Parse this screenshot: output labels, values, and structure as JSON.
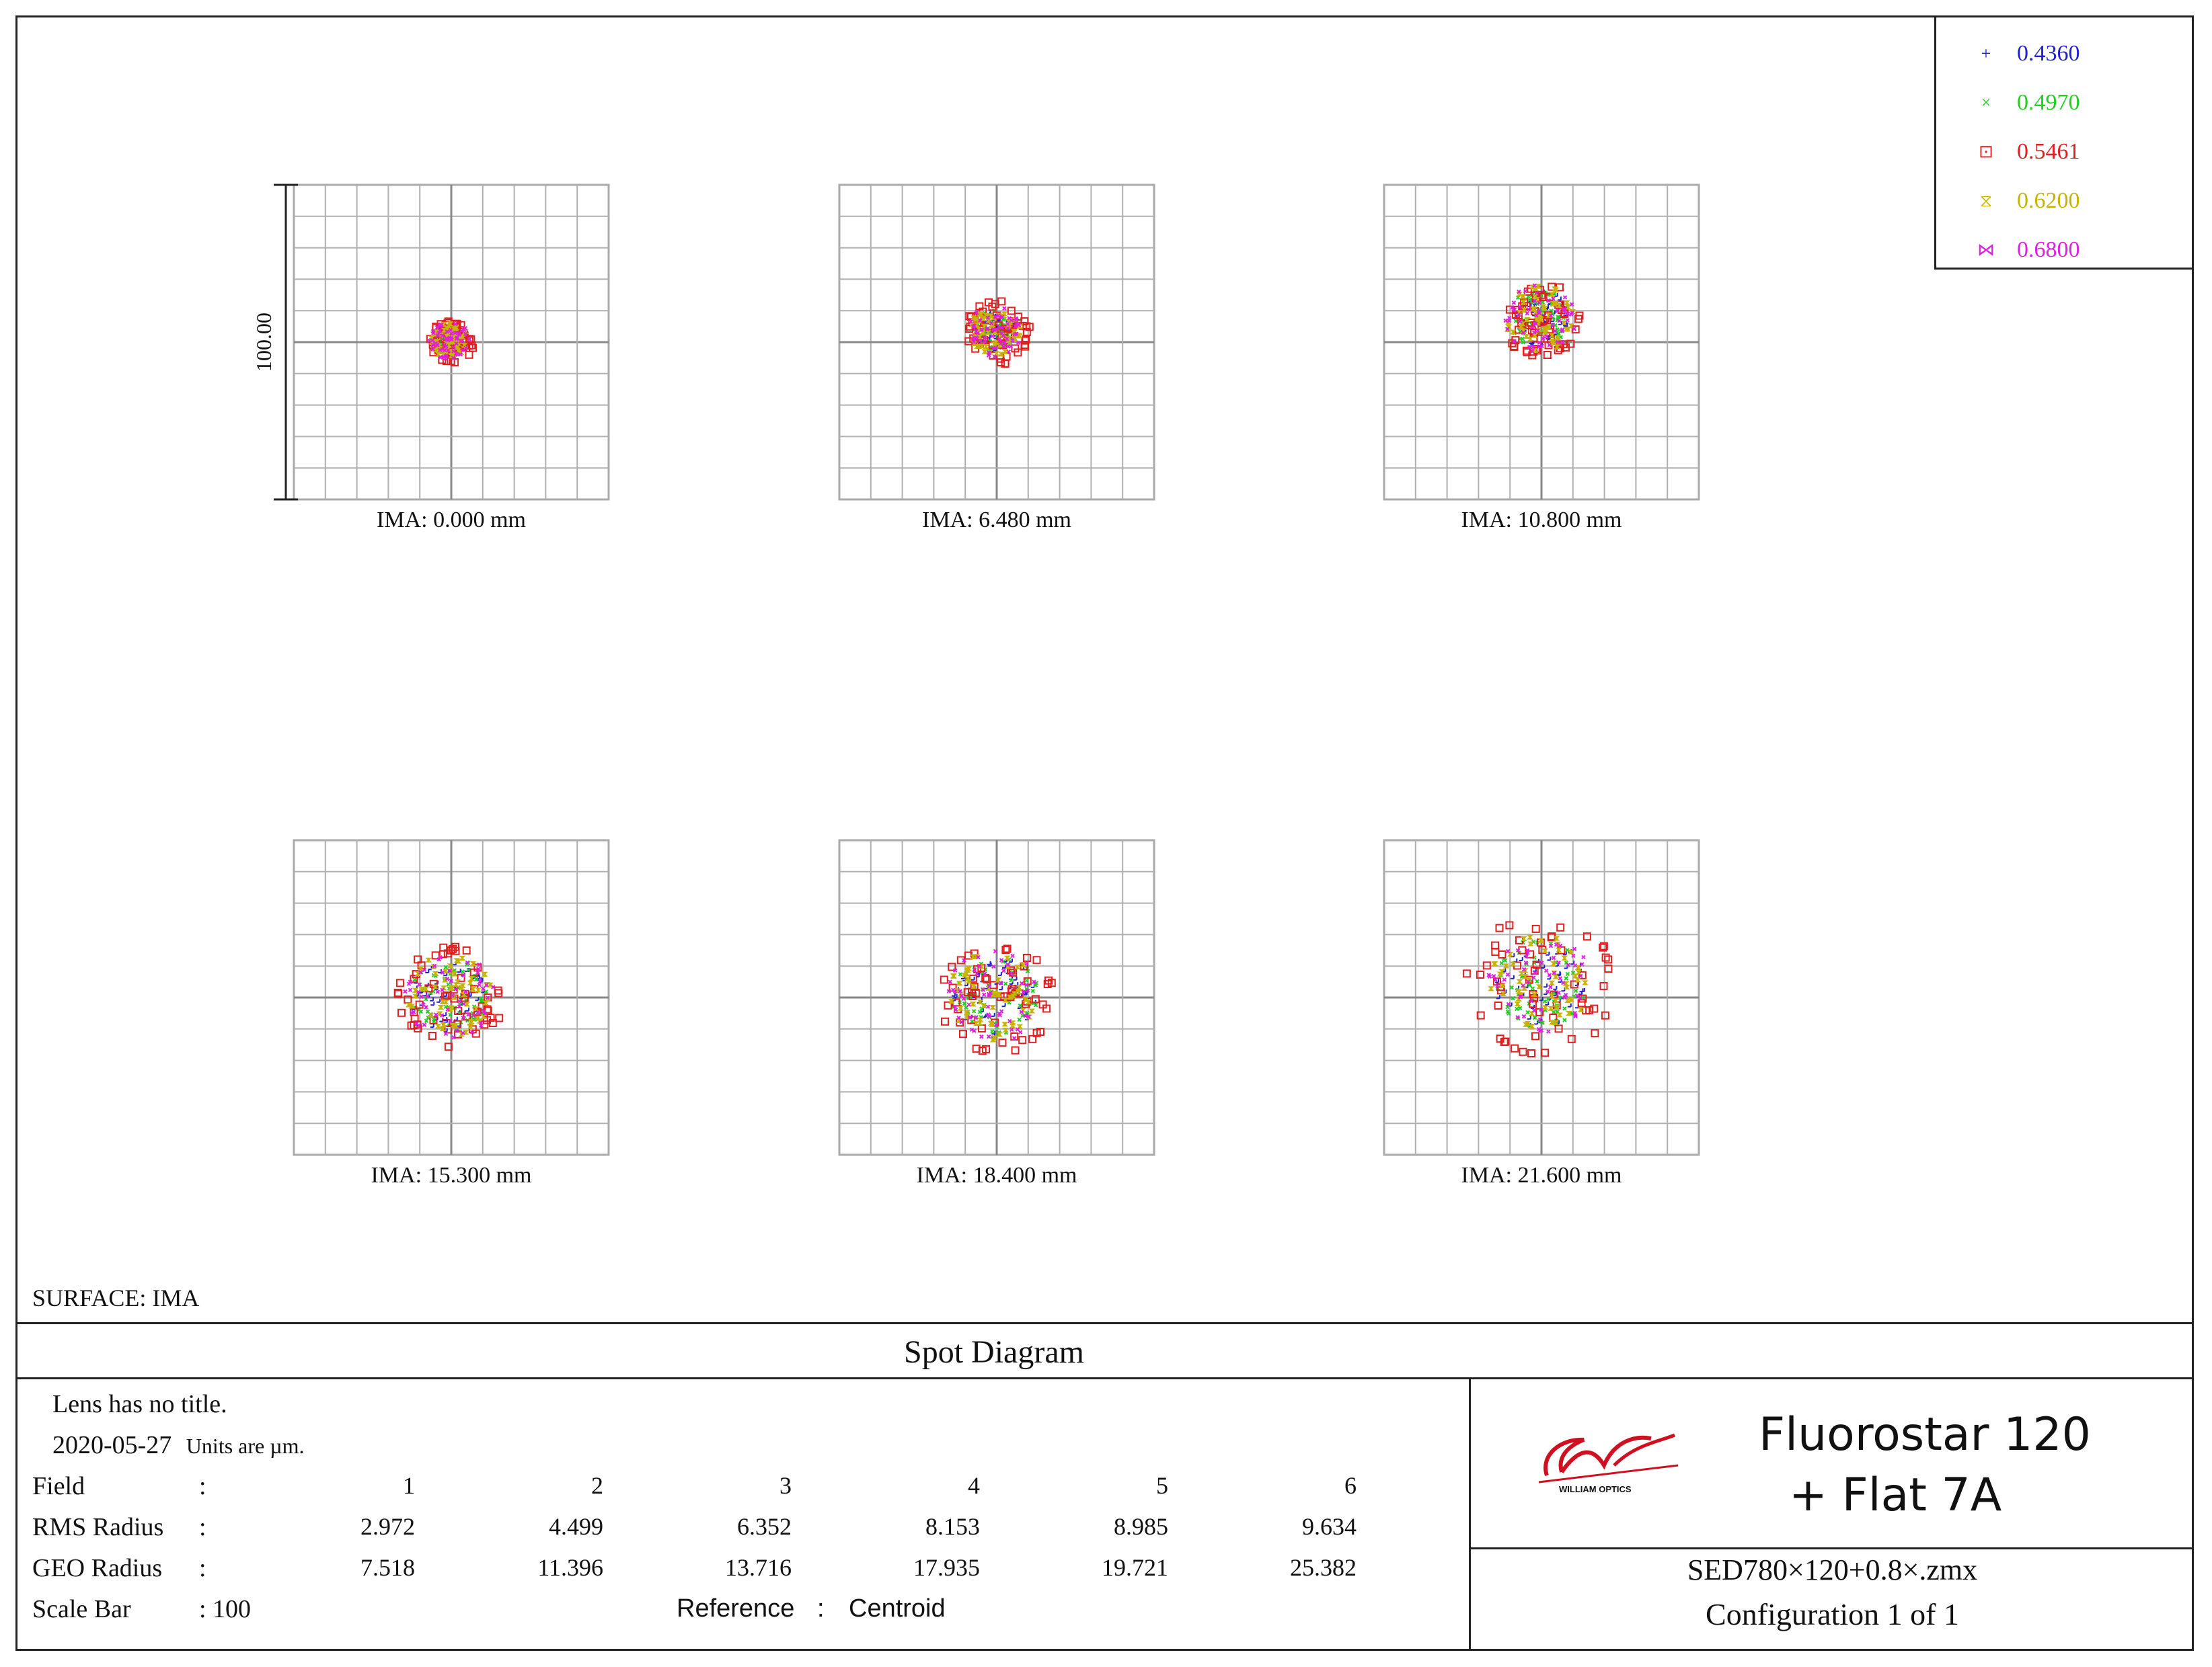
{
  "chart_data": {
    "type": "scatter",
    "title": "Spot Diagram",
    "surface_label": "SURFACE: IMA",
    "scale_bar_label": "100.00",
    "grid": true,
    "legend_position": "top-right",
    "wavelengths": [
      {
        "label": "0.4360",
        "color": "#2020d0",
        "symbol": "+"
      },
      {
        "label": "0.4970",
        "color": "#20d020",
        "symbol": "×"
      },
      {
        "label": "0.5461",
        "color": "#e02020",
        "symbol": "⊡"
      },
      {
        "label": "0.6200",
        "color": "#c8b400",
        "symbol": "⧖"
      },
      {
        "label": "0.6800",
        "color": "#e020e0",
        "symbol": "⋈"
      }
    ],
    "fields": [
      {
        "label": "IMA: 0.000 mm",
        "rms_radius": "2.972",
        "geo_radius": "7.518",
        "centroid_offset": [
          0,
          0
        ]
      },
      {
        "label": "IMA: 6.480 mm",
        "rms_radius": "4.499",
        "geo_radius": "11.396",
        "centroid_offset": [
          0,
          3
        ]
      },
      {
        "label": "IMA: 10.800 mm",
        "rms_radius": "6.352",
        "geo_radius": "13.716",
        "centroid_offset": [
          0,
          7
        ]
      },
      {
        "label": "IMA: 15.300 mm",
        "rms_radius": "8.153",
        "geo_radius": "17.935",
        "centroid_offset": [
          0,
          0
        ]
      },
      {
        "label": "IMA: 18.400 mm",
        "rms_radius": "8.985",
        "geo_radius": "19.721",
        "centroid_offset": [
          0,
          0
        ]
      },
      {
        "label": "IMA: 21.600 mm",
        "rms_radius": "9.634",
        "geo_radius": "25.382",
        "centroid_offset": [
          0,
          4
        ]
      }
    ]
  },
  "info": {
    "lens_title": "Lens has no title.",
    "date": "2020-05-27",
    "units": "Units are µm.",
    "field_label": "Field",
    "rms_label": "RMS Radius",
    "geo_label": "GEO Radius",
    "scale_bar_label": "Scale Bar",
    "scale_bar_value": ": 100",
    "colon": ":",
    "field_numbers": [
      "1",
      "2",
      "3",
      "4",
      "5",
      "6"
    ],
    "reference_label": "Reference",
    "reference_value": "Centroid"
  },
  "titleblock": {
    "logo_text": "WILLIAM OPTICS",
    "product_line1": "Fluorostar 120",
    "product_line2": "+  Flat 7A",
    "filename": "SED780×120+0.8×.zmx",
    "configuration": "Configuration 1 of 1"
  }
}
